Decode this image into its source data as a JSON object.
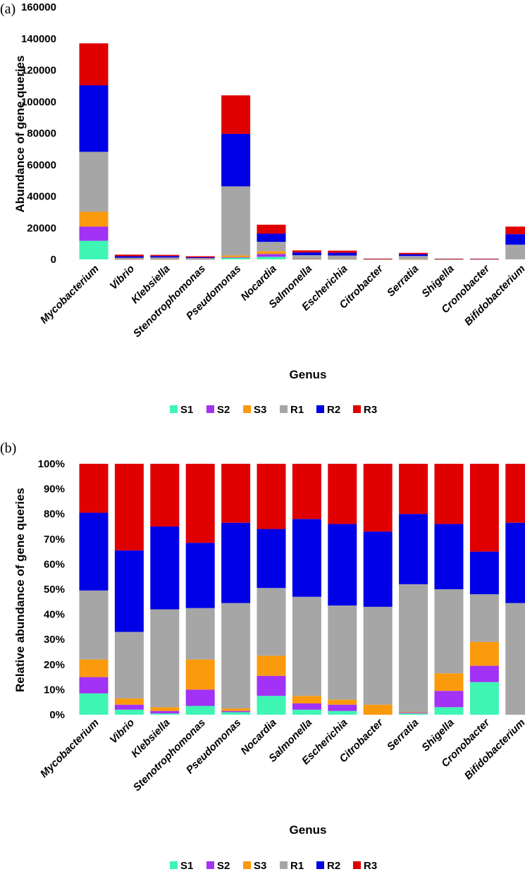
{
  "colors": {
    "S1": "#3ff5b4",
    "S2": "#a232f5",
    "S3": "#fb9a0c",
    "R1": "#a6a6a6",
    "R2": "#0000e6",
    "R3": "#e00000"
  },
  "chart_data": [
    {
      "panel": "(a)",
      "type": "bar",
      "stacked": true,
      "title": "",
      "xlabel": "Genus",
      "ylabel": "Abundance of gene queries",
      "ylim": [
        0,
        160000
      ],
      "yticks": [
        "0",
        "20000",
        "40000",
        "60000",
        "80000",
        "100000",
        "120000",
        "140000",
        "160000"
      ],
      "ytick_values": [
        0,
        20000,
        40000,
        60000,
        80000,
        100000,
        120000,
        140000,
        160000
      ],
      "legend": [
        "S1",
        "S2",
        "S3",
        "R1",
        "R2",
        "R3"
      ],
      "legend_position": "bottom",
      "categories": [
        "Mycobacterium",
        "Vibrio",
        "Klebsiella",
        "Stenotrophomonas",
        "Pseudomonas",
        "Nocardia",
        "Salmonella",
        "Escherichia",
        "Citrobacter",
        "Serratia",
        "Shigella",
        "Cronobacter",
        "Bifidobacterium"
      ],
      "series": [
        {
          "name": "S1",
          "values": [
            11800,
            60,
            20,
            70,
            1000,
            1600,
            120,
            80,
            0,
            20,
            15,
            50,
            0
          ]
        },
        {
          "name": "S2",
          "values": [
            9000,
            60,
            20,
            110,
            400,
            1800,
            160,
            130,
            0,
            10,
            25,
            30,
            0
          ]
        },
        {
          "name": "S3",
          "values": [
            9400,
            80,
            40,
            220,
            1100,
            1800,
            160,
            120,
            20,
            10,
            25,
            40,
            0
          ]
        },
        {
          "name": "R1",
          "values": [
            38000,
            800,
            1100,
            400,
            43800,
            5900,
            2200,
            2100,
            200,
            2100,
            140,
            80,
            9300
          ]
        },
        {
          "name": "R2",
          "values": [
            42200,
            1000,
            940,
            550,
            33300,
            5200,
            1780,
            1780,
            150,
            1150,
            110,
            70,
            6700
          ]
        },
        {
          "name": "R3",
          "values": [
            26600,
            1000,
            720,
            650,
            24400,
            5700,
            1270,
            1350,
            130,
            850,
            105,
            130,
            4800
          ]
        }
      ]
    },
    {
      "panel": "(b)",
      "type": "bar",
      "stacked": true,
      "title": "",
      "xlabel": "Genus",
      "ylabel": "Relative abundance of gene queries",
      "ylim": [
        0,
        100
      ],
      "yticks": [
        "0%",
        "10%",
        "20%",
        "30%",
        "40%",
        "50%",
        "60%",
        "70%",
        "80%",
        "90%",
        "100%"
      ],
      "ytick_values": [
        0,
        10,
        20,
        30,
        40,
        50,
        60,
        70,
        80,
        90,
        100
      ],
      "legend": [
        "S1",
        "S2",
        "S3",
        "R1",
        "R2",
        "R3"
      ],
      "legend_position": "bottom",
      "categories": [
        "Mycobacterium",
        "Vibrio",
        "Klebsiella",
        "Stenotrophomonas",
        "Pseudomonas",
        "Nocardia",
        "Salmonella",
        "Escherichia",
        "Citrobacter",
        "Serratia",
        "Shigella",
        "Cronobacter",
        "Bifidobacterium"
      ],
      "series": [
        {
          "name": "S1",
          "values": [
            8.5,
            2,
            0.5,
            3.5,
            1,
            7.5,
            2,
            1.5,
            0,
            0.5,
            3,
            13,
            0
          ]
        },
        {
          "name": "S2",
          "values": [
            6.5,
            2,
            1,
            6.5,
            0.5,
            8,
            2.5,
            2.5,
            0,
            0.3,
            6.5,
            6.5,
            0
          ]
        },
        {
          "name": "S3",
          "values": [
            7,
            2.5,
            1.5,
            12,
            1,
            8,
            3,
            2,
            4,
            0.2,
            7,
            9.5,
            0
          ]
        },
        {
          "name": "R1",
          "values": [
            27.5,
            26.5,
            39,
            20.5,
            42,
            27,
            39.5,
            37.5,
            39,
            51,
            33.5,
            19,
            44.5
          ]
        },
        {
          "name": "R2",
          "values": [
            31,
            32.5,
            33,
            26,
            32,
            23.5,
            31,
            32.5,
            30,
            28,
            26,
            17,
            32
          ]
        },
        {
          "name": "R3",
          "values": [
            19.5,
            34.5,
            25,
            31.5,
            23.5,
            26,
            22,
            24,
            27,
            20,
            24,
            35,
            23.5
          ]
        }
      ]
    }
  ]
}
